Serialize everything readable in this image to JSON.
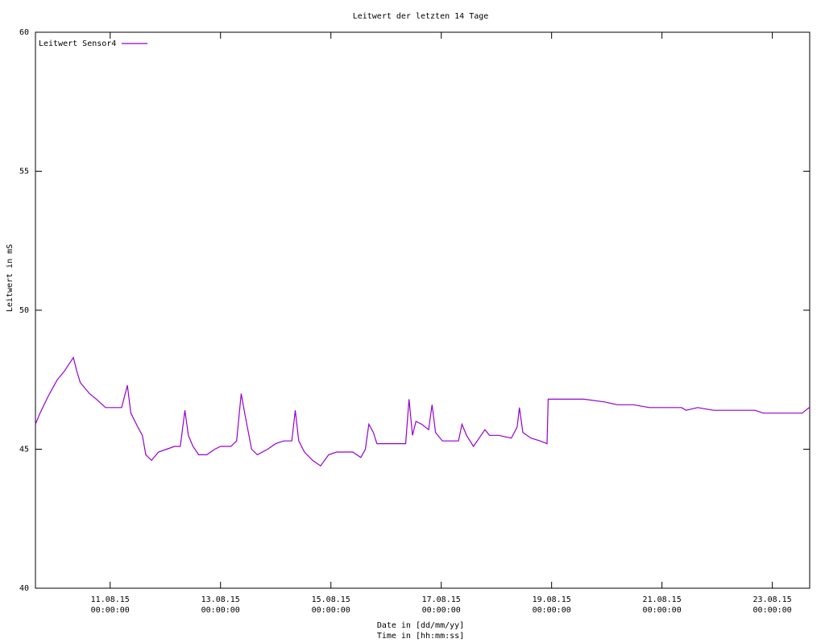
{
  "chart_data": {
    "type": "line",
    "title": "Leitwert der letzten 14 Tage",
    "x_label": [
      "Date in [dd/mm/yy]",
      "Time in [hh:mm:ss]"
    ],
    "y_label": "Leitwert in mS",
    "legend": "top-left",
    "xlim": [
      "2015-08-09T15:30",
      "2015-08-23T16:15"
    ],
    "xticks": [
      {
        "value": "2015-08-11T00:00",
        "label": [
          "11.08.15",
          "00:00:00"
        ]
      },
      {
        "value": "2015-08-13T00:00",
        "label": [
          "13.08.15",
          "00:00:00"
        ]
      },
      {
        "value": "2015-08-15T00:00",
        "label": [
          "15.08.15",
          "00:00:00"
        ]
      },
      {
        "value": "2015-08-17T00:00",
        "label": [
          "17.08.15",
          "00:00:00"
        ]
      },
      {
        "value": "2015-08-19T00:00",
        "label": [
          "19.08.15",
          "00:00:00"
        ]
      },
      {
        "value": "2015-08-21T00:00",
        "label": [
          "21.08.15",
          "00:00:00"
        ]
      },
      {
        "value": "2015-08-23T00:00",
        "label": [
          "23.08.15",
          "00:00:00"
        ]
      }
    ],
    "ylim": [
      40,
      60
    ],
    "yticks": [
      40,
      45,
      50,
      55,
      60
    ],
    "x": [
      "2015-08-09T15:30",
      "2015-08-09T17:30",
      "2015-08-09T21:00",
      "2015-08-09T23:00",
      "2015-08-10T01:00",
      "2015-08-10T04:00",
      "2015-08-10T08:00",
      "2015-08-10T09:30",
      "2015-08-10T11:00",
      "2015-08-10T15:00",
      "2015-08-10T18:00",
      "2015-08-10T22:00",
      "2015-08-11T03:00",
      "2015-08-11T05:00",
      "2015-08-11T07:30",
      "2015-08-11T09:00",
      "2015-08-11T12:00",
      "2015-08-11T14:00",
      "2015-08-11T15:30",
      "2015-08-11T18:00",
      "2015-08-11T21:00",
      "2015-08-12T00:30",
      "2015-08-12T04:00",
      "2015-08-12T06:30",
      "2015-08-12T08:30",
      "2015-08-12T10:00",
      "2015-08-12T12:00",
      "2015-08-12T14:30",
      "2015-08-12T18:00",
      "2015-08-12T21:30",
      "2015-08-13T00:00",
      "2015-08-13T04:30",
      "2015-08-13T07:00",
      "2015-08-13T09:00",
      "2015-08-13T10:30",
      "2015-08-13T13:30",
      "2015-08-13T16:00",
      "2015-08-13T20:30",
      "2015-08-14T00:00",
      "2015-08-14T03:30",
      "2015-08-14T07:00",
      "2015-08-14T08:30",
      "2015-08-14T10:00",
      "2015-08-14T12:30",
      "2015-08-14T16:00",
      "2015-08-14T19:30",
      "2015-08-14T23:00",
      "2015-08-15T02:30",
      "2015-08-15T06:00",
      "2015-08-15T09:30",
      "2015-08-15T13:00",
      "2015-08-15T15:00",
      "2015-08-15T16:30",
      "2015-08-15T18:30",
      "2015-08-15T20:00",
      "2015-08-15T23:30",
      "2015-08-16T05:00",
      "2015-08-16T08:30",
      "2015-08-16T10:00",
      "2015-08-16T11:30",
      "2015-08-16T13:00",
      "2015-08-16T15:30",
      "2015-08-16T18:30",
      "2015-08-16T20:00",
      "2015-08-16T21:30",
      "2015-08-17T00:30",
      "2015-08-17T04:00",
      "2015-08-17T07:30",
      "2015-08-17T09:00",
      "2015-08-17T11:00",
      "2015-08-17T14:00",
      "2015-08-17T16:30",
      "2015-08-17T19:00",
      "2015-08-17T21:00",
      "2015-08-18T01:00",
      "2015-08-18T06:30",
      "2015-08-18T09:00",
      "2015-08-18T10:00",
      "2015-08-18T11:30",
      "2015-08-18T15:00",
      "2015-08-18T19:00",
      "2015-08-18T22:00",
      "2015-08-18T22:30",
      "2015-08-19T07:00",
      "2015-08-19T14:00",
      "2015-08-19T23:00",
      "2015-08-20T04:30",
      "2015-08-20T11:30",
      "2015-08-20T18:30",
      "2015-08-21T01:30",
      "2015-08-21T08:30",
      "2015-08-21T10:30",
      "2015-08-21T15:30",
      "2015-08-21T22:30",
      "2015-08-22T05:30",
      "2015-08-22T16:30",
      "2015-08-22T20:00",
      "2015-08-23T03:00",
      "2015-08-23T13:00",
      "2015-08-23T16:00"
    ],
    "series": [
      {
        "name": "Leitwert Sensor4",
        "color": "#9400d3",
        "values": [
          45.9,
          46.3,
          46.9,
          47.2,
          47.5,
          47.8,
          48.3,
          47.8,
          47.4,
          47.0,
          46.8,
          46.5,
          46.5,
          46.5,
          47.3,
          46.3,
          45.8,
          45.5,
          44.8,
          44.6,
          44.9,
          45.0,
          45.1,
          45.1,
          46.4,
          45.5,
          45.1,
          44.8,
          44.8,
          45.0,
          45.1,
          45.1,
          45.3,
          47.0,
          46.3,
          45.0,
          44.8,
          45.0,
          45.2,
          45.3,
          45.3,
          46.4,
          45.3,
          44.9,
          44.6,
          44.4,
          44.8,
          44.9,
          44.9,
          44.9,
          44.7,
          45.0,
          45.9,
          45.6,
          45.2,
          45.2,
          45.2,
          45.2,
          46.8,
          45.5,
          46.0,
          45.9,
          45.7,
          46.6,
          45.6,
          45.3,
          45.3,
          45.3,
          45.9,
          45.5,
          45.1,
          45.4,
          45.7,
          45.5,
          45.5,
          45.4,
          45.8,
          46.5,
          45.6,
          45.4,
          45.3,
          45.2,
          46.8,
          46.8,
          46.8,
          46.7,
          46.6,
          46.6,
          46.5,
          46.5,
          46.5,
          46.4,
          46.5,
          46.4,
          46.4,
          46.4,
          46.3,
          46.3,
          46.3,
          46.5
        ]
      }
    ]
  }
}
